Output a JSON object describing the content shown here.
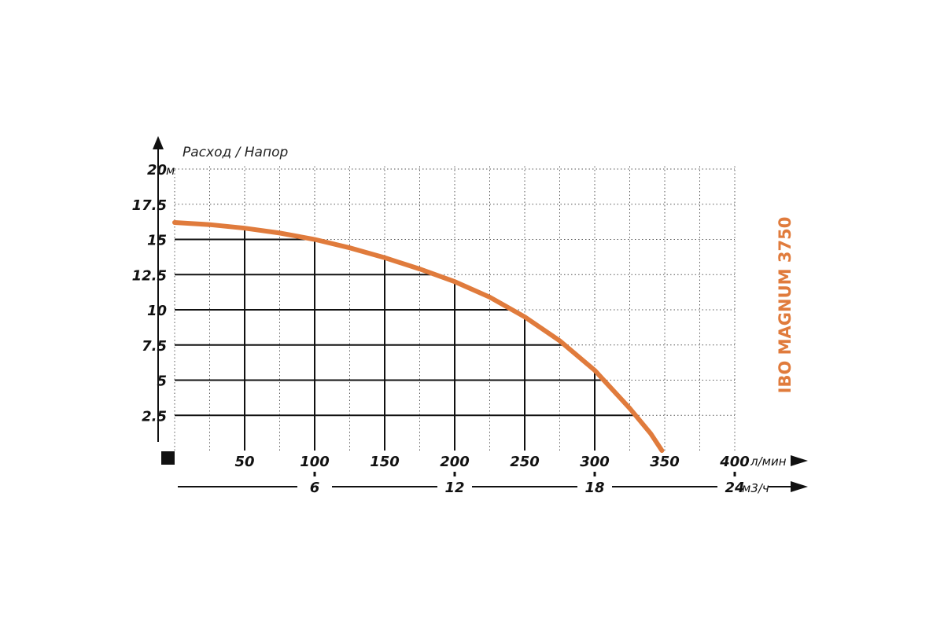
{
  "chart_data": {
    "type": "line",
    "title": "Расход / Напор",
    "product_label": "IBO MAGNUM 3750",
    "y_axis": {
      "unit": "м",
      "ylim": [
        0,
        20
      ],
      "ticks": [
        {
          "v": 2.5,
          "label": "2.5"
        },
        {
          "v": 5,
          "label": "5"
        },
        {
          "v": 7.5,
          "label": "7.5"
        },
        {
          "v": 10,
          "label": "10"
        },
        {
          "v": 12.5,
          "label": "12.5"
        },
        {
          "v": 15,
          "label": "15"
        },
        {
          "v": 17.5,
          "label": "17.5"
        },
        {
          "v": 20,
          "label": "20"
        }
      ]
    },
    "x_axis": {
      "unit": "л/мин",
      "xlim": [
        0,
        400
      ],
      "ticks": [
        {
          "v": 50,
          "label": "50"
        },
        {
          "v": 100,
          "label": "100"
        },
        {
          "v": 150,
          "label": "150"
        },
        {
          "v": 200,
          "label": "200"
        },
        {
          "v": 250,
          "label": "250"
        },
        {
          "v": 300,
          "label": "300"
        },
        {
          "v": 350,
          "label": "350"
        },
        {
          "v": 400,
          "label": "400"
        }
      ]
    },
    "x2_axis": {
      "unit": "м3/ч",
      "ticks": [
        {
          "v": 6,
          "label": "6"
        },
        {
          "v": 12,
          "label": "12"
        },
        {
          "v": 18,
          "label": "18"
        },
        {
          "v": 24,
          "label": "24"
        }
      ]
    },
    "series": [
      {
        "color": "#e07b3c",
        "x": [
          0,
          25,
          50,
          75,
          100,
          125,
          150,
          175,
          200,
          225,
          250,
          275,
          300,
          325,
          340,
          348
        ],
        "y": [
          16.2,
          16.05,
          15.8,
          15.45,
          15.0,
          14.4,
          13.7,
          12.9,
          12.0,
          10.9,
          9.5,
          7.8,
          5.7,
          3.0,
          1.2,
          0
        ]
      }
    ],
    "grid": true,
    "colors": {
      "curve": "#e07b3c",
      "brand": "#e07b3c",
      "grid": "#555555",
      "axis": "#111111"
    }
  }
}
